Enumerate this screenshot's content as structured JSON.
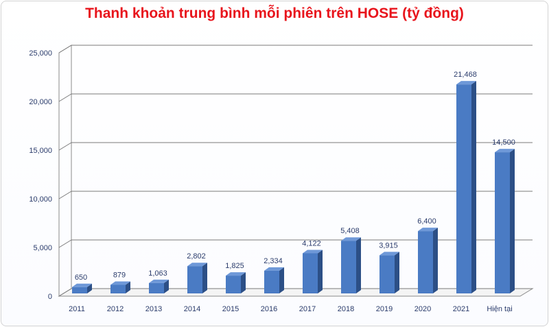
{
  "chart_data": {
    "type": "bar",
    "title": "Thanh khoản trung bình mỗi phiên trên HOSE (tỷ đồng)",
    "categories": [
      "2011",
      "2012",
      "2013",
      "2014",
      "2015",
      "2016",
      "2017",
      "2018",
      "2019",
      "2020",
      "2021",
      "Hiện tại"
    ],
    "values": [
      650,
      879,
      1063,
      2802,
      1825,
      2334,
      4122,
      5408,
      3915,
      6400,
      21468,
      14500
    ],
    "value_labels": [
      "650",
      "879",
      "1,063",
      "2,802",
      "1,825",
      "2,334",
      "4,122",
      "5,408",
      "3,915",
      "6,400",
      "21,468",
      "14,500"
    ],
    "yticks": [
      0,
      5000,
      10000,
      15000,
      20000,
      25000
    ],
    "ytick_labels": [
      "0",
      "5,000",
      "10,000",
      "15,000",
      "20,000",
      "25,000"
    ],
    "ylim": [
      0,
      25000
    ],
    "grid": true,
    "bar_color": "#4a7bc4",
    "bar_side_color": "#2c4f86",
    "bar_top_color": "#6e98d8",
    "title_color": "#e8141c"
  }
}
